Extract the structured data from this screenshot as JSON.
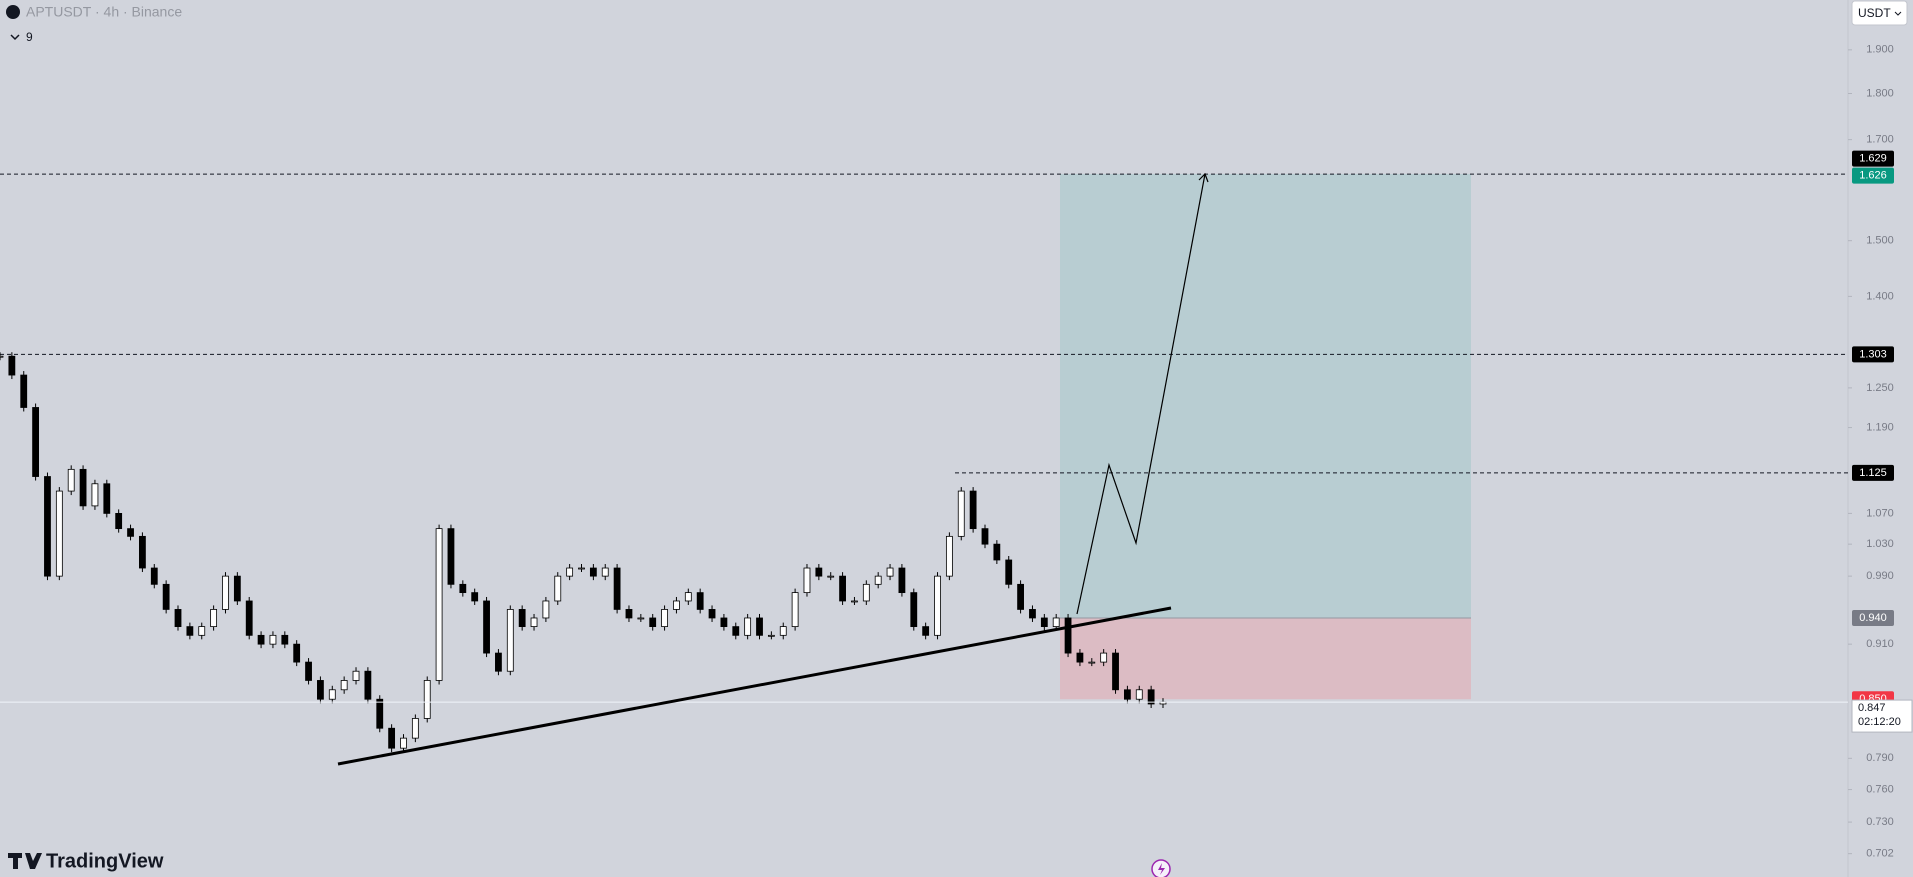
{
  "header": {
    "symbol": "APTUSDT · 4h · Binance",
    "indicator_count": "9",
    "currency": "USDT"
  },
  "chart_data": {
    "type": "candlestick",
    "values": [
      1.3,
      1.27,
      1.22,
      1.12,
      0.99,
      1.1,
      1.13,
      1.08,
      1.11,
      1.07,
      1.05,
      1.04,
      1.0,
      0.98,
      0.95,
      0.93,
      0.92,
      0.93,
      0.95,
      0.99,
      0.96,
      0.92,
      0.91,
      0.92,
      0.91,
      0.89,
      0.87,
      0.85,
      0.86,
      0.87,
      0.88,
      0.85,
      0.82,
      0.8,
      0.81,
      0.83,
      0.87,
      1.05,
      0.98,
      0.97,
      0.96,
      0.9,
      0.88,
      0.95,
      0.93,
      0.94,
      0.96,
      0.99,
      1.0,
      1.0,
      0.99,
      1.0,
      0.95,
      0.94,
      0.94,
      0.93,
      0.95,
      0.96,
      0.97,
      0.95,
      0.94,
      0.93,
      0.92,
      0.94,
      0.92,
      0.92,
      0.93,
      0.97,
      1.0,
      0.99,
      0.99,
      0.96,
      0.96,
      0.98,
      0.99,
      1.0,
      0.97,
      0.93,
      0.92,
      0.99,
      1.04,
      1.1,
      1.05,
      1.03,
      1.01,
      0.98,
      0.95,
      0.94,
      0.93,
      0.94,
      0.9,
      0.89,
      0.89,
      0.9,
      0.86,
      0.85,
      0.86,
      0.845,
      0.847
    ],
    "ylim": [
      0.682,
      2.021
    ],
    "log_scale": true,
    "yticks": [
      {
        "value": 1.9,
        "label": "1.900"
      },
      {
        "value": 1.8,
        "label": "1.800"
      },
      {
        "value": 1.7,
        "label": "1.700"
      },
      {
        "value": 1.5,
        "label": "1.500"
      },
      {
        "value": 1.4,
        "label": "1.400"
      },
      {
        "value": 1.25,
        "label": "1.250"
      },
      {
        "value": 1.19,
        "label": "1.190"
      },
      {
        "value": 1.07,
        "label": "1.070"
      },
      {
        "value": 1.03,
        "label": "1.030"
      },
      {
        "value": 0.99,
        "label": "0.990"
      },
      {
        "value": 0.91,
        "label": "0.910"
      },
      {
        "value": 0.79,
        "label": "0.790"
      },
      {
        "value": 0.76,
        "label": "0.760"
      },
      {
        "value": 0.73,
        "label": "0.730"
      },
      {
        "value": 0.702,
        "label": "0.702"
      }
    ],
    "up_color": "#ffffff",
    "down_color": "#000000",
    "levels": [
      1.629,
      1.303,
      1.125
    ],
    "position": {
      "target": 1.629,
      "entry": 0.94,
      "stop": 0.85,
      "profit_color": "#b8cdd2",
      "loss_color": "#dcbcc4"
    },
    "price_labels": [
      {
        "value": 1.629,
        "label": "1.629",
        "color": "#000000"
      },
      {
        "value": 1.626,
        "label": "1.626",
        "color": "#089981"
      },
      {
        "value": 1.303,
        "label": "1.303",
        "color": "#000000"
      },
      {
        "value": 1.125,
        "label": "1.125",
        "color": "#000000"
      },
      {
        "value": 0.94,
        "label": "0.940",
        "color": "#787b86"
      },
      {
        "value": 0.85,
        "label": "0.850",
        "color": "#f23645"
      }
    ],
    "last_price": {
      "value": 0.847,
      "label": "0.847",
      "countdown": "02:12:20"
    }
  },
  "footer": {
    "brand": "TradingView"
  }
}
